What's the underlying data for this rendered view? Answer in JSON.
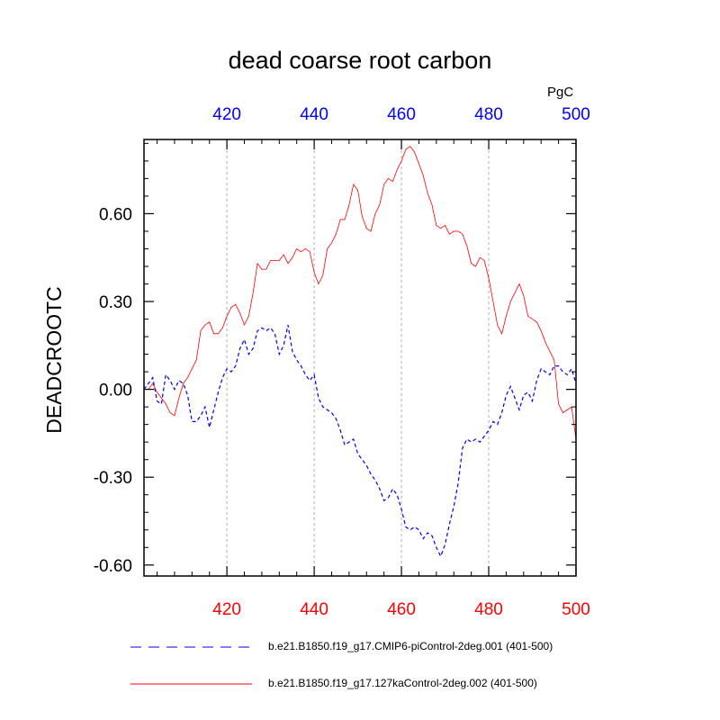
{
  "chart_data": {
    "type": "line",
    "title": "dead coarse root carbon",
    "units": "PgC",
    "ylabel": "DEADCROOTC",
    "xlabel": "",
    "xlim": [
      401,
      500
    ],
    "ylim": [
      -0.6375,
      0.8534
    ],
    "x_ticks": [
      420,
      440,
      460,
      480,
      500
    ],
    "x_tick_labels": [
      "420",
      "440",
      "460",
      "480",
      "500"
    ],
    "y_ticks": [
      -0.6,
      -0.3,
      0.0,
      0.3,
      0.6
    ],
    "y_tick_labels": [
      "-0.60",
      "-0.30",
      "0.00",
      "0.30",
      "0.60"
    ],
    "vertical_gridlines": [
      420,
      440,
      460,
      480
    ],
    "bottom_axis_color": "#ff0000",
    "top_axis_color": "#0000ff",
    "series": [
      {
        "name": "b.e21.B1850.f19_g17.CMIP6-piControl-2deg.001 (401-500)",
        "color": "#0000ff",
        "style": "dashed",
        "x": [
          401,
          402,
          403,
          404,
          405,
          406,
          407,
          408,
          409,
          410,
          411,
          412,
          413,
          414,
          415,
          416,
          417,
          418,
          419,
          420,
          421,
          422,
          423,
          424,
          425,
          426,
          427,
          428,
          429,
          430,
          431,
          432,
          433,
          434,
          435,
          436,
          437,
          438,
          439,
          440,
          441,
          442,
          443,
          444,
          445,
          446,
          447,
          448,
          449,
          450,
          451,
          452,
          453,
          454,
          455,
          456,
          457,
          458,
          459,
          460,
          461,
          462,
          463,
          464,
          465,
          466,
          467,
          468,
          469,
          470,
          471,
          472,
          473,
          474,
          475,
          476,
          477,
          478,
          479,
          480,
          481,
          482,
          483,
          484,
          485,
          486,
          487,
          488,
          489,
          490,
          491,
          492,
          493,
          494,
          495,
          496,
          497,
          498,
          499,
          500
        ],
        "y": [
          0.0,
          0.02,
          0.04,
          -0.04,
          -0.05,
          0.05,
          0.03,
          0.0,
          0.03,
          0.02,
          -0.02,
          -0.11,
          -0.11,
          -0.09,
          -0.06,
          -0.13,
          -0.07,
          -0.01,
          0.04,
          0.07,
          0.06,
          0.08,
          0.14,
          0.17,
          0.12,
          0.14,
          0.2,
          0.21,
          0.2,
          0.21,
          0.19,
          0.12,
          0.15,
          0.22,
          0.13,
          0.1,
          0.08,
          0.05,
          0.03,
          0.05,
          -0.03,
          -0.06,
          -0.07,
          -0.08,
          -0.1,
          -0.14,
          -0.19,
          -0.18,
          -0.17,
          -0.22,
          -0.24,
          -0.26,
          -0.29,
          -0.31,
          -0.34,
          -0.38,
          -0.37,
          -0.34,
          -0.36,
          -0.41,
          -0.47,
          -0.48,
          -0.47,
          -0.48,
          -0.51,
          -0.49,
          -0.5,
          -0.54,
          -0.57,
          -0.53,
          -0.46,
          -0.4,
          -0.32,
          -0.2,
          -0.17,
          -0.18,
          -0.17,
          -0.18,
          -0.16,
          -0.14,
          -0.11,
          -0.12,
          -0.08,
          -0.02,
          0.01,
          -0.03,
          -0.07,
          -0.02,
          -0.01,
          -0.04,
          0.03,
          0.07,
          0.06,
          0.05,
          0.08,
          0.08,
          0.06,
          0.05,
          0.07,
          0.02
        ]
      },
      {
        "name": "b.e21.B1850.f19_g17.127kaControl-2deg.002 (401-500)",
        "color": "#ff0000",
        "style": "solid",
        "x": [
          401,
          402,
          403,
          404,
          405,
          406,
          407,
          408,
          409,
          410,
          411,
          412,
          413,
          414,
          415,
          416,
          417,
          418,
          419,
          420,
          421,
          422,
          423,
          424,
          425,
          426,
          427,
          428,
          429,
          430,
          431,
          432,
          433,
          434,
          435,
          436,
          437,
          438,
          439,
          440,
          441,
          442,
          443,
          444,
          445,
          446,
          447,
          448,
          449,
          450,
          451,
          452,
          453,
          454,
          455,
          456,
          457,
          458,
          459,
          460,
          461,
          462,
          463,
          464,
          465,
          466,
          467,
          468,
          469,
          470,
          471,
          472,
          473,
          474,
          475,
          476,
          477,
          478,
          479,
          480,
          481,
          482,
          483,
          484,
          485,
          486,
          487,
          488,
          489,
          490,
          491,
          492,
          493,
          494,
          495,
          496,
          497,
          498,
          499,
          500
        ],
        "y": [
          0.0,
          0.0,
          0.02,
          -0.01,
          -0.03,
          -0.05,
          -0.08,
          -0.09,
          -0.03,
          0.02,
          0.04,
          0.07,
          0.1,
          0.2,
          0.22,
          0.23,
          0.19,
          0.19,
          0.21,
          0.25,
          0.28,
          0.29,
          0.26,
          0.22,
          0.25,
          0.33,
          0.43,
          0.41,
          0.41,
          0.44,
          0.44,
          0.44,
          0.46,
          0.43,
          0.45,
          0.48,
          0.47,
          0.48,
          0.47,
          0.4,
          0.36,
          0.39,
          0.48,
          0.5,
          0.53,
          0.58,
          0.58,
          0.63,
          0.7,
          0.68,
          0.59,
          0.55,
          0.54,
          0.6,
          0.63,
          0.7,
          0.72,
          0.71,
          0.75,
          0.78,
          0.82,
          0.83,
          0.81,
          0.77,
          0.73,
          0.67,
          0.63,
          0.56,
          0.55,
          0.56,
          0.53,
          0.54,
          0.54,
          0.53,
          0.49,
          0.43,
          0.42,
          0.45,
          0.44,
          0.38,
          0.3,
          0.22,
          0.19,
          0.25,
          0.3,
          0.33,
          0.36,
          0.32,
          0.25,
          0.24,
          0.23,
          0.2,
          0.16,
          0.13,
          0.1,
          -0.05,
          -0.08,
          -0.07,
          -0.06,
          -0.17
        ]
      }
    ],
    "legend_placement": "bottom"
  }
}
